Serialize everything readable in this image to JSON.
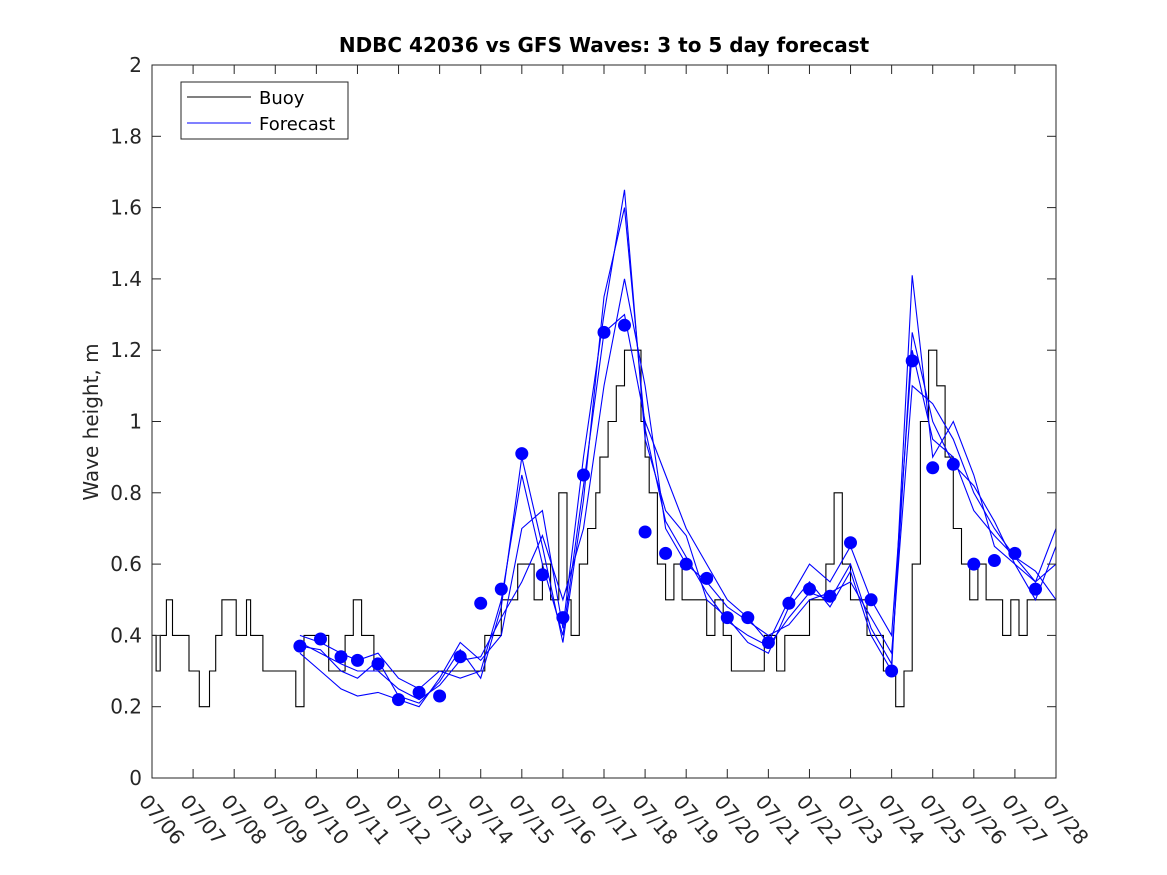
{
  "chart_data": {
    "type": "line",
    "title": "NDBC 42036 vs GFS Waves: 3 to 5 day forecast",
    "xlabel": "",
    "ylabel": "Wave height, m",
    "x_unit": "day of July (x = 6 is 07/06)",
    "xlim": [
      6,
      28
    ],
    "ylim": [
      0,
      2
    ],
    "x_ticks": [
      6,
      7,
      8,
      9,
      10,
      11,
      12,
      13,
      14,
      15,
      16,
      17,
      18,
      19,
      20,
      21,
      22,
      23,
      24,
      25,
      26,
      27,
      28
    ],
    "x_tick_labels": [
      "07/06",
      "07/07",
      "07/08",
      "07/09",
      "07/10",
      "07/11",
      "07/12",
      "07/13",
      "07/14",
      "07/15",
      "07/16",
      "07/17",
      "07/18",
      "07/19",
      "07/20",
      "07/21",
      "07/22",
      "07/23",
      "07/24",
      "07/25",
      "07/26",
      "07/27",
      "07/28"
    ],
    "y_ticks": [
      0,
      0.2,
      0.4,
      0.6,
      0.8,
      1,
      1.2,
      1.4,
      1.6,
      1.8,
      2
    ],
    "y_tick_labels": [
      "0",
      "0.2",
      "0.4",
      "0.6",
      "0.8",
      "1",
      "1.2",
      "1.4",
      "1.6",
      "1.8",
      "2"
    ],
    "grid": false,
    "legend_position": "top-left",
    "legend": [
      {
        "label": "Buoy",
        "color": "#000000"
      },
      {
        "label": "Forecast",
        "color": "#0000ff"
      }
    ],
    "colors": {
      "buoy": "#000000",
      "forecast": "#0000ff",
      "points": "#0000ff"
    },
    "series": [
      {
        "name": "Buoy",
        "color": "#000000",
        "step": true,
        "x": [
          6.0,
          6.1,
          6.2,
          6.35,
          6.5,
          6.6,
          6.9,
          7.15,
          7.4,
          7.55,
          7.7,
          7.9,
          8.05,
          8.3,
          8.4,
          8.5,
          8.7,
          9.0,
          9.2,
          9.5,
          9.7,
          10.0,
          10.3,
          10.7,
          10.9,
          11.1,
          11.4,
          11.7,
          12.1,
          12.5,
          13.0,
          13.6,
          14.0,
          14.1,
          14.3,
          14.5,
          14.7,
          14.9,
          15.1,
          15.3,
          15.5,
          15.7,
          15.9,
          16.1,
          16.2,
          16.4,
          16.6,
          16.8,
          16.9,
          17.1,
          17.3,
          17.5,
          17.7,
          17.9,
          18.0,
          18.1,
          18.3,
          18.5,
          18.7,
          18.9,
          19.1,
          19.3,
          19.5,
          19.7,
          19.9,
          20.1,
          20.4,
          20.7,
          20.9,
          21.2,
          21.4,
          21.6,
          21.8,
          22.0,
          22.2,
          22.4,
          22.6,
          22.8,
          23.0,
          23.2,
          23.4,
          23.6,
          23.8,
          24.0,
          24.1,
          24.3,
          24.5,
          24.7,
          24.9,
          25.1,
          25.3,
          25.5,
          25.7,
          25.9,
          26.1,
          26.3,
          26.5,
          26.7,
          26.9,
          27.1,
          27.3,
          27.5,
          27.7,
          27.9,
          28.0
        ],
        "values": [
          0.4,
          0.3,
          0.4,
          0.5,
          0.4,
          0.4,
          0.3,
          0.2,
          0.3,
          0.4,
          0.5,
          0.5,
          0.4,
          0.5,
          0.4,
          0.4,
          0.3,
          0.3,
          0.3,
          0.2,
          0.4,
          0.4,
          0.3,
          0.4,
          0.5,
          0.4,
          0.3,
          0.3,
          0.3,
          0.3,
          0.3,
          0.3,
          0.3,
          0.4,
          0.4,
          0.5,
          0.5,
          0.6,
          0.6,
          0.5,
          0.6,
          0.5,
          0.8,
          0.5,
          0.4,
          0.6,
          0.7,
          0.8,
          0.9,
          1.0,
          1.1,
          1.2,
          1.2,
          1.0,
          0.9,
          0.8,
          0.6,
          0.5,
          0.6,
          0.5,
          0.5,
          0.5,
          0.4,
          0.5,
          0.4,
          0.3,
          0.3,
          0.3,
          0.4,
          0.3,
          0.4,
          0.4,
          0.4,
          0.5,
          0.5,
          0.6,
          0.8,
          0.6,
          0.5,
          0.5,
          0.4,
          0.4,
          0.3,
          0.3,
          0.2,
          0.3,
          0.6,
          1.0,
          1.2,
          1.1,
          0.9,
          0.7,
          0.6,
          0.5,
          0.6,
          0.5,
          0.5,
          0.4,
          0.5,
          0.4,
          0.5,
          0.5,
          0.5,
          0.5,
          0.5
        ]
      },
      {
        "name": "Forecast",
        "color": "#0000ff",
        "x": [
          9.6,
          10.1,
          10.6,
          11.0,
          11.5,
          12.0,
          12.5,
          13.0,
          13.5,
          14.0,
          14.5,
          15.0,
          15.5,
          16.0,
          16.5,
          17.0,
          17.5,
          18.0,
          18.5,
          19.0,
          19.5,
          20.0,
          20.5,
          21.0,
          21.5,
          22.0,
          22.5,
          23.0,
          23.5,
          24.0,
          24.5,
          25.0,
          25.5,
          26.0,
          26.5,
          27.0,
          27.5,
          28.0
        ],
        "values": [
          0.38,
          0.35,
          0.32,
          0.3,
          0.3,
          0.25,
          0.22,
          0.26,
          0.33,
          0.34,
          0.45,
          0.55,
          0.68,
          0.5,
          0.7,
          1.1,
          1.4,
          1.1,
          0.7,
          0.6,
          0.55,
          0.48,
          0.44,
          0.4,
          0.43,
          0.5,
          0.52,
          0.55,
          0.45,
          0.35,
          1.1,
          1.05,
          0.95,
          0.8,
          0.7,
          0.62,
          0.55,
          0.6
        ]
      },
      {
        "name": "Forecast",
        "color": "#0000ff",
        "x": [
          9.6,
          10.1,
          10.6,
          11.0,
          11.5,
          12.0,
          12.5,
          13.0,
          13.5,
          14.0,
          14.5,
          15.0,
          15.5,
          16.0,
          16.5,
          17.0,
          17.5,
          18.0,
          18.5,
          19.0,
          19.5,
          20.0,
          20.5,
          21.0,
          21.5,
          22.0,
          22.5,
          23.0,
          23.5,
          24.0,
          24.5,
          25.0,
          25.5,
          26.0,
          26.5,
          27.0,
          27.5,
          28.0
        ],
        "values": [
          0.35,
          0.3,
          0.25,
          0.23,
          0.24,
          0.22,
          0.2,
          0.28,
          0.38,
          0.33,
          0.4,
          0.7,
          0.75,
          0.42,
          0.9,
          1.3,
          1.65,
          0.95,
          0.75,
          0.68,
          0.5,
          0.45,
          0.38,
          0.35,
          0.48,
          0.55,
          0.48,
          0.58,
          0.4,
          0.3,
          1.41,
          0.9,
          1.0,
          0.85,
          0.65,
          0.6,
          0.5,
          0.65
        ]
      },
      {
        "name": "Forecast",
        "color": "#0000ff",
        "x": [
          9.6,
          10.1,
          10.6,
          11.0,
          11.5,
          12.0,
          12.5,
          13.0,
          13.5,
          14.0,
          14.5,
          15.0,
          15.5,
          16.0,
          16.5,
          17.0,
          17.5,
          18.0,
          18.5,
          19.0,
          19.5,
          20.0,
          20.5,
          21.0,
          21.5,
          22.0,
          22.5,
          23.0,
          23.5,
          24.0,
          24.5,
          25.0,
          25.5,
          26.0,
          26.5,
          27.0,
          27.5,
          28.0
        ],
        "values": [
          0.4,
          0.38,
          0.35,
          0.33,
          0.35,
          0.28,
          0.25,
          0.3,
          0.28,
          0.3,
          0.5,
          0.85,
          0.6,
          0.4,
          0.82,
          1.25,
          1.3,
          1.0,
          0.85,
          0.7,
          0.6,
          0.5,
          0.45,
          0.38,
          0.5,
          0.6,
          0.55,
          0.65,
          0.5,
          0.4,
          1.2,
          0.95,
          0.9,
          0.75,
          0.68,
          0.62,
          0.58,
          0.5
        ]
      },
      {
        "name": "Forecast",
        "color": "#0000ff",
        "x": [
          9.6,
          10.1,
          10.6,
          11.0,
          11.5,
          12.0,
          12.5,
          13.0,
          13.5,
          14.0,
          14.5,
          15.0,
          15.5,
          16.0,
          16.5,
          17.0,
          17.5,
          18.0,
          18.5,
          19.0,
          19.5,
          20.0,
          20.5,
          21.0,
          21.5,
          22.0,
          22.5,
          23.0,
          23.5,
          24.0,
          24.5,
          25.0,
          25.5,
          26.0,
          26.5,
          27.0,
          27.5,
          28.0
        ],
        "values": [
          0.37,
          0.36,
          0.3,
          0.28,
          0.33,
          0.23,
          0.21,
          0.27,
          0.36,
          0.28,
          0.48,
          0.9,
          0.65,
          0.38,
          0.78,
          1.35,
          1.6,
          0.98,
          0.72,
          0.62,
          0.52,
          0.44,
          0.4,
          0.37,
          0.45,
          0.52,
          0.5,
          0.6,
          0.42,
          0.32,
          1.25,
          1.0,
          0.88,
          0.82,
          0.72,
          0.6,
          0.55,
          0.7
        ]
      },
      {
        "name": "Forecast points",
        "color": "#0000ff",
        "marker": "circle",
        "x": [
          9.6,
          10.1,
          10.6,
          11.0,
          11.5,
          12.0,
          12.5,
          13.0,
          13.5,
          14.0,
          14.5,
          15.0,
          15.5,
          16.0,
          16.5,
          17.0,
          17.5,
          18.0,
          18.5,
          19.0,
          19.5,
          20.0,
          20.5,
          21.0,
          21.5,
          22.0,
          22.5,
          23.0,
          23.5,
          24.0,
          24.5,
          25.0,
          25.5,
          26.0,
          26.5,
          27.0,
          27.5
        ],
        "values": [
          0.37,
          0.39,
          0.34,
          0.33,
          0.32,
          0.22,
          0.24,
          0.23,
          0.34,
          0.49,
          0.53,
          0.91,
          0.57,
          0.45,
          0.85,
          1.25,
          1.27,
          0.69,
          0.63,
          0.6,
          0.56,
          0.45,
          0.45,
          0.38,
          0.49,
          0.53,
          0.51,
          0.66,
          0.5,
          0.3,
          1.17,
          0.87,
          0.88,
          0.6,
          0.61,
          0.63,
          0.53
        ]
      }
    ]
  }
}
